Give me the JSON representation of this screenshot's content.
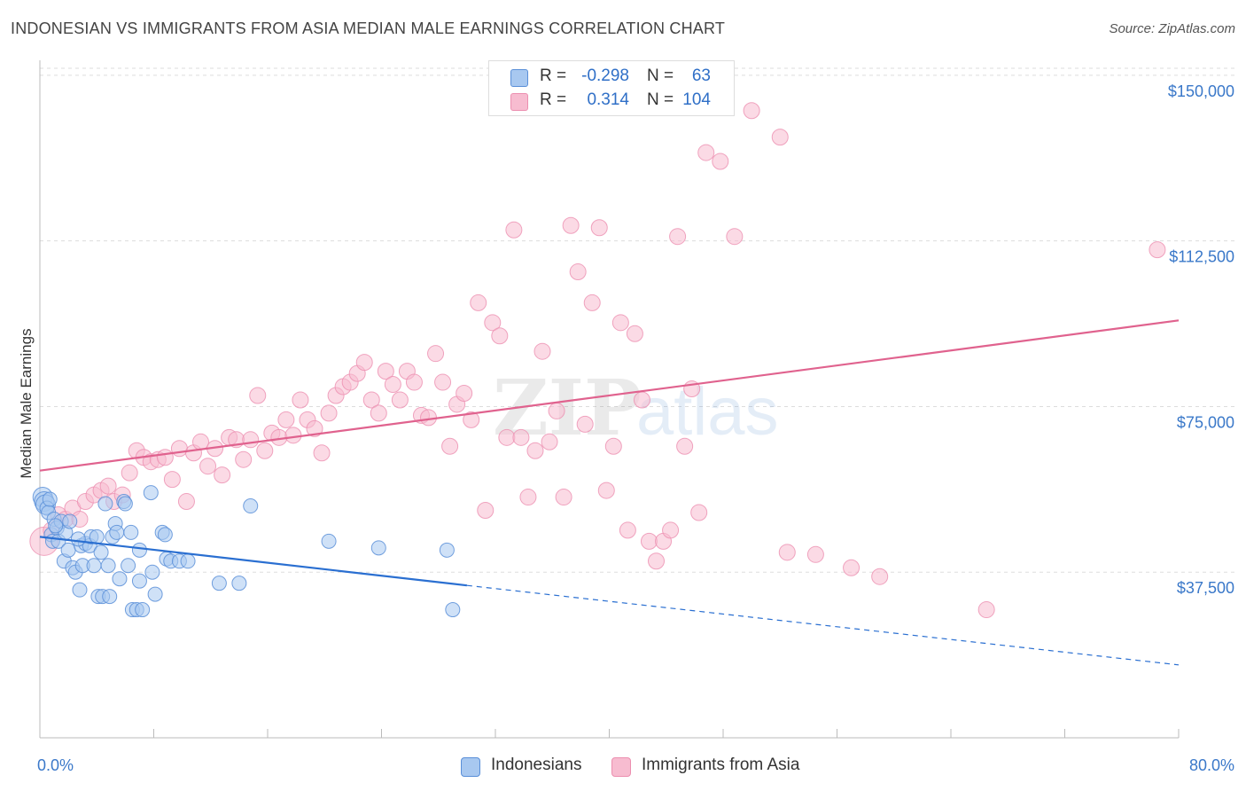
{
  "header": {
    "title": "INDONESIAN VS IMMIGRANTS FROM ASIA MEDIAN MALE EARNINGS CORRELATION CHART",
    "source": "Source: ZipAtlas.com"
  },
  "legend": {
    "rows": [
      {
        "r_label": "R =",
        "r_value": "-0.298",
        "n_label": "N =",
        "n_value": "63"
      },
      {
        "r_label": "R =",
        "r_value": "0.314",
        "n_label": "N =",
        "n_value": "104"
      }
    ]
  },
  "bottom_legend": {
    "series_a": "Indonesians",
    "series_b": "Immigrants from Asia"
  },
  "colors": {
    "blue_fill": "#a8c8f0",
    "blue_stroke": "#5a8fd8",
    "blue_line": "#2a6fd1",
    "pink_fill": "#f7bcd0",
    "pink_stroke": "#ec8fb0",
    "pink_line": "#e0628e",
    "tick_label": "#3a78c9",
    "grid": "#dddddd"
  },
  "watermark": {
    "zip": "ZIP",
    "atlas": "atlas"
  },
  "chart_data": {
    "type": "scatter",
    "xlabel": "",
    "ylabel": "Median Male Earnings",
    "xlim": [
      0,
      80
    ],
    "ylim": [
      0,
      155000
    ],
    "x_tick_labels": [
      "0.0%",
      "80.0%"
    ],
    "y_ticks": [
      37500,
      75000,
      112500,
      150000
    ],
    "y_tick_labels": [
      "$37,500",
      "$75,000",
      "$112,500",
      "$150,000"
    ],
    "grid": true,
    "legend_position": "top-center",
    "series": [
      {
        "name": "Indonesians",
        "color": "#a8c8f0",
        "trend": {
          "x": [
            0,
            30
          ],
          "y": [
            45500,
            34500
          ],
          "dashed_to": [
            80,
            16500
          ]
        },
        "points": [
          [
            0.2,
            54500
          ],
          [
            0.3,
            53500
          ],
          [
            0.4,
            52800
          ],
          [
            0.5,
            52000
          ],
          [
            0.6,
            51000
          ],
          [
            0.7,
            54000
          ],
          [
            0.8,
            46000
          ],
          [
            0.9,
            44500
          ],
          [
            1.0,
            49500
          ],
          [
            1.2,
            47500
          ],
          [
            1.3,
            44500
          ],
          [
            1.5,
            49000
          ],
          [
            1.7,
            40000
          ],
          [
            1.8,
            46500
          ],
          [
            2.0,
            42500
          ],
          [
            2.1,
            49000
          ],
          [
            2.3,
            38500
          ],
          [
            2.5,
            37500
          ],
          [
            2.8,
            33500
          ],
          [
            2.9,
            43500
          ],
          [
            3.0,
            39000
          ],
          [
            3.2,
            44000
          ],
          [
            3.5,
            43500
          ],
          [
            3.6,
            45500
          ],
          [
            3.8,
            39000
          ],
          [
            4.0,
            45500
          ],
          [
            4.1,
            32000
          ],
          [
            4.3,
            42000
          ],
          [
            4.4,
            32000
          ],
          [
            4.6,
            53000
          ],
          [
            4.8,
            39000
          ],
          [
            4.9,
            32000
          ],
          [
            5.1,
            45500
          ],
          [
            5.3,
            48500
          ],
          [
            5.4,
            46500
          ],
          [
            5.6,
            36000
          ],
          [
            5.9,
            53500
          ],
          [
            6.0,
            53000
          ],
          [
            6.2,
            39000
          ],
          [
            6.4,
            46500
          ],
          [
            6.5,
            29000
          ],
          [
            6.8,
            29000
          ],
          [
            7.0,
            35500
          ],
          [
            7.0,
            42500
          ],
          [
            7.2,
            29000
          ],
          [
            7.8,
            55500
          ],
          [
            7.9,
            37500
          ],
          [
            8.1,
            32500
          ],
          [
            8.6,
            46500
          ],
          [
            8.8,
            46000
          ],
          [
            8.9,
            40500
          ],
          [
            9.2,
            40000
          ],
          [
            9.8,
            40000
          ],
          [
            10.4,
            40000
          ],
          [
            12.6,
            35000
          ],
          [
            14.0,
            35000
          ],
          [
            14.8,
            52500
          ],
          [
            20.3,
            44500
          ],
          [
            23.8,
            43000
          ],
          [
            28.6,
            42500
          ],
          [
            29.0,
            29000
          ],
          [
            1.1,
            48000
          ],
          [
            2.7,
            45000
          ]
        ]
      },
      {
        "name": "Immigrants from Asia",
        "color": "#f7bcd0",
        "trend": {
          "x": [
            0,
            80
          ],
          "y": [
            60500,
            94500
          ]
        },
        "points": [
          [
            0.3,
            44500
          ],
          [
            0.8,
            47000
          ],
          [
            1.3,
            50500
          ],
          [
            1.8,
            49500
          ],
          [
            2.3,
            52000
          ],
          [
            2.8,
            49500
          ],
          [
            3.2,
            53500
          ],
          [
            3.8,
            55000
          ],
          [
            4.3,
            56000
          ],
          [
            4.8,
            57000
          ],
          [
            5.2,
            53500
          ],
          [
            5.8,
            55000
          ],
          [
            6.3,
            60000
          ],
          [
            6.8,
            65000
          ],
          [
            7.3,
            63500
          ],
          [
            7.8,
            62500
          ],
          [
            8.3,
            63000
          ],
          [
            8.8,
            63500
          ],
          [
            9.3,
            58500
          ],
          [
            9.8,
            65500
          ],
          [
            10.3,
            53500
          ],
          [
            10.8,
            64500
          ],
          [
            11.3,
            67000
          ],
          [
            11.8,
            61500
          ],
          [
            12.3,
            65500
          ],
          [
            12.8,
            59500
          ],
          [
            13.3,
            68000
          ],
          [
            13.8,
            67500
          ],
          [
            14.3,
            63000
          ],
          [
            14.8,
            67500
          ],
          [
            15.3,
            77500
          ],
          [
            15.8,
            65000
          ],
          [
            16.3,
            69000
          ],
          [
            16.8,
            68000
          ],
          [
            17.3,
            72000
          ],
          [
            17.8,
            68500
          ],
          [
            18.3,
            76500
          ],
          [
            18.8,
            72000
          ],
          [
            19.3,
            70000
          ],
          [
            19.8,
            64500
          ],
          [
            20.3,
            73500
          ],
          [
            20.8,
            77500
          ],
          [
            21.3,
            79500
          ],
          [
            21.8,
            80500
          ],
          [
            22.3,
            82500
          ],
          [
            22.8,
            85000
          ],
          [
            23.3,
            76500
          ],
          [
            23.8,
            73500
          ],
          [
            24.3,
            83000
          ],
          [
            24.8,
            80000
          ],
          [
            25.3,
            76500
          ],
          [
            25.8,
            83000
          ],
          [
            26.3,
            80500
          ],
          [
            26.8,
            73000
          ],
          [
            27.3,
            72500
          ],
          [
            27.8,
            87000
          ],
          [
            28.3,
            80500
          ],
          [
            28.8,
            66000
          ],
          [
            29.3,
            75500
          ],
          [
            29.8,
            78000
          ],
          [
            30.3,
            72000
          ],
          [
            30.8,
            98500
          ],
          [
            31.3,
            51500
          ],
          [
            31.8,
            94000
          ],
          [
            32.3,
            91000
          ],
          [
            32.8,
            68000
          ],
          [
            33.3,
            115000
          ],
          [
            33.8,
            68000
          ],
          [
            34.3,
            54500
          ],
          [
            34.8,
            65000
          ],
          [
            35.3,
            87500
          ],
          [
            35.8,
            67000
          ],
          [
            36.3,
            74000
          ],
          [
            36.8,
            54500
          ],
          [
            37.3,
            116000
          ],
          [
            37.8,
            105500
          ],
          [
            38.3,
            71000
          ],
          [
            38.8,
            98500
          ],
          [
            39.3,
            115500
          ],
          [
            39.8,
            56000
          ],
          [
            40.3,
            66000
          ],
          [
            40.8,
            94000
          ],
          [
            41.3,
            47000
          ],
          [
            41.8,
            91500
          ],
          [
            42.3,
            76500
          ],
          [
            42.8,
            44500
          ],
          [
            43.3,
            40000
          ],
          [
            43.8,
            44500
          ],
          [
            44.3,
            47000
          ],
          [
            44.8,
            113500
          ],
          [
            45.3,
            66000
          ],
          [
            45.8,
            79000
          ],
          [
            46.3,
            51000
          ],
          [
            46.8,
            132500
          ],
          [
            47.8,
            130500
          ],
          [
            48.8,
            113500
          ],
          [
            50.0,
            142000
          ],
          [
            52.0,
            136000
          ],
          [
            52.5,
            42000
          ],
          [
            54.5,
            41500
          ],
          [
            57.0,
            38500
          ],
          [
            59.0,
            36500
          ],
          [
            66.5,
            29000
          ],
          [
            78.5,
            110500
          ]
        ]
      }
    ]
  }
}
